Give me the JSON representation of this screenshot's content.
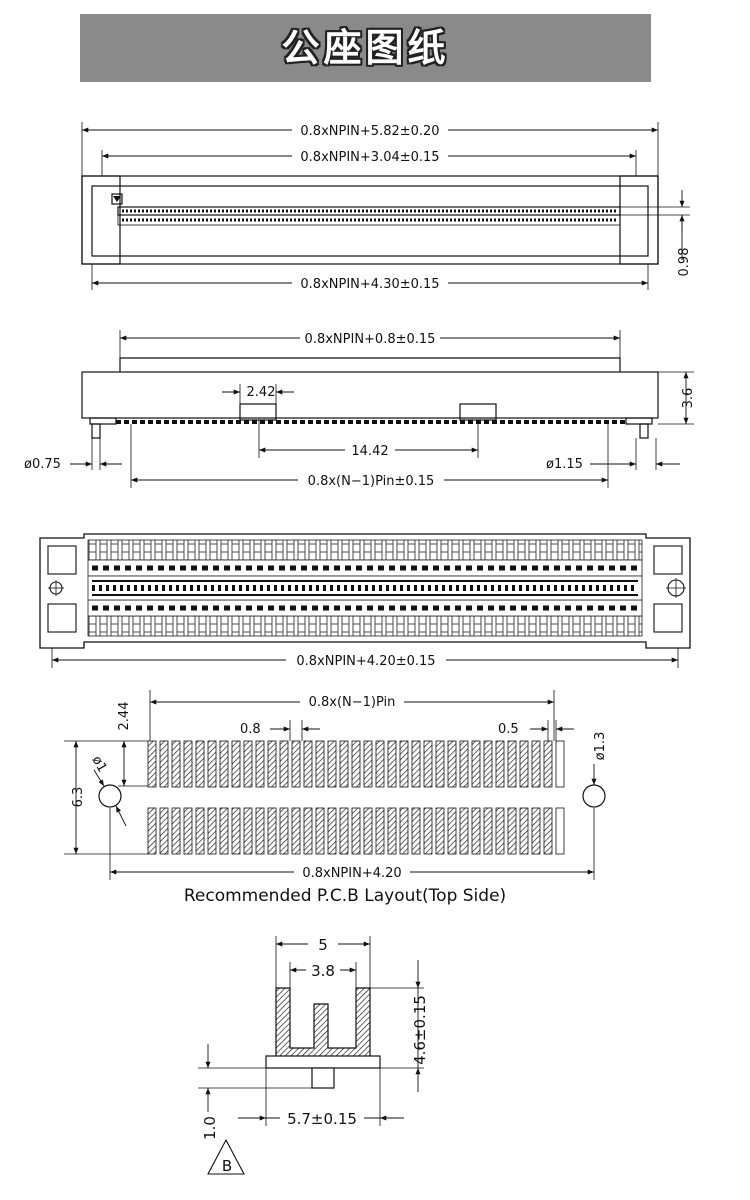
{
  "title": "公座图纸",
  "top_view": {
    "overall": "0.8xNPIN+5.82±0.20",
    "inner": "0.8xNPIN+3.04±0.15",
    "bottom": "0.8xNPIN+4.30±0.15",
    "side": "0.98"
  },
  "front_view": {
    "top": "0.8xNPIN+0.8±0.15",
    "post_width": "2.42",
    "post_spacing": "14.42",
    "pin_span": "0.8x(N−1)Pin±0.15",
    "left_dia": "ø0.75",
    "right_dia": "ø1.15",
    "height": "3.6"
  },
  "bottom_view": {
    "overall": "0.8xNPIN+4.20±0.15"
  },
  "pcb": {
    "span": "0.8x(N−1)Pin",
    "height_top": "2.44",
    "pitch": "0.8",
    "pad_width": "0.5",
    "hole_right": "ø1.3",
    "hole_left": "ø1",
    "rows": "6.3",
    "total": "0.8xNPIN+4.20",
    "caption": "Recommended P.C.B Layout(Top Side)"
  },
  "section": {
    "outer": "5",
    "inner": "3.8",
    "height": "4.6±0.15",
    "base": "5.7±0.15",
    "standoff": "1.0",
    "mark": "B"
  }
}
